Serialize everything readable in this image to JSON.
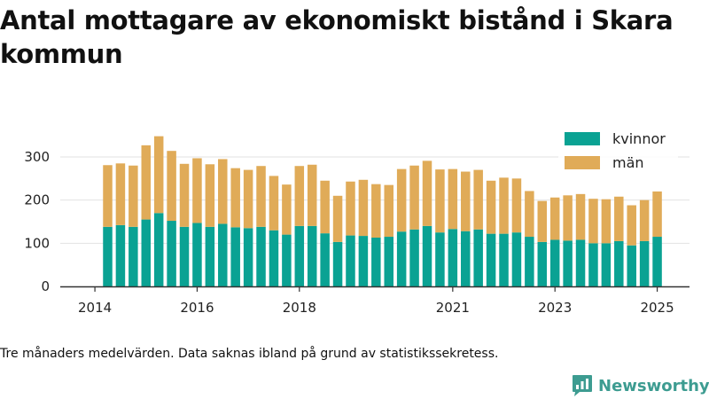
{
  "title": "Antal mottagare av ekonomiskt bistånd i Skara kommun",
  "footnote": "Tre månaders medelvärden. Data saknas ibland på grund av statistikssekretess.",
  "brand": {
    "name": "Newsworthy",
    "icon": "newsworthy-logo-icon",
    "color": "#3d9c91"
  },
  "chart_data": {
    "type": "bar",
    "stacked": true,
    "title": "",
    "xlabel": "",
    "ylabel": "",
    "ylim": [
      0,
      350
    ],
    "y_ticks": [
      0,
      100,
      200,
      300
    ],
    "x_tick_labels": [
      "2014",
      "2016",
      "2018",
      "2021",
      "2023",
      "2025"
    ],
    "x_tick_bar_index": [
      -1,
      7,
      15,
      27,
      35,
      43
    ],
    "grid": "horizontal",
    "legend_position": "top-right",
    "series": [
      {
        "name": "kvinnor",
        "color": "#0aa293",
        "values": [
          138,
          142,
          138,
          155,
          170,
          152,
          138,
          147,
          138,
          145,
          137,
          135,
          138,
          130,
          120,
          140,
          140,
          123,
          103,
          118,
          117,
          113,
          115,
          127,
          132,
          140,
          125,
          133,
          128,
          132,
          122,
          122,
          125,
          115,
          103,
          108,
          106,
          108,
          100,
          100,
          105,
          95,
          105,
          115
        ]
      },
      {
        "name": "män",
        "color": "#e0ab58",
        "values": [
          143,
          143,
          142,
          172,
          178,
          162,
          146,
          150,
          145,
          150,
          137,
          135,
          141,
          126,
          116,
          139,
          142,
          122,
          107,
          125,
          130,
          124,
          120,
          145,
          148,
          151,
          146,
          139,
          138,
          138,
          123,
          130,
          125,
          106,
          95,
          98,
          105,
          106,
          103,
          102,
          103,
          93,
          95,
          105
        ]
      }
    ]
  }
}
